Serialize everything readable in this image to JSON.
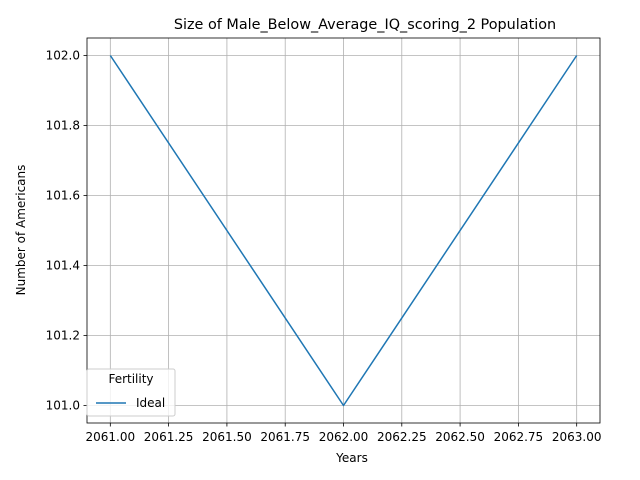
{
  "chart_data": {
    "type": "line",
    "title": "Size of Male_Below_Average_IQ_scoring_2 Population",
    "xlabel": "Years",
    "ylabel": "Number of Americans",
    "x": [
      2061,
      2062,
      2063
    ],
    "series": [
      {
        "name": "Ideal",
        "values": [
          102,
          101,
          102
        ],
        "color": "#1f77b4"
      }
    ],
    "xlim": [
      2060.9,
      2063.1
    ],
    "ylim": [
      100.95,
      102.05
    ],
    "xticks": [
      2061.0,
      2061.25,
      2061.5,
      2061.75,
      2062.0,
      2062.25,
      2062.5,
      2062.75,
      2063.0
    ],
    "xtick_labels": [
      "2061.00",
      "2061.25",
      "2061.50",
      "2061.75",
      "2062.00",
      "2062.25",
      "2062.50",
      "2062.75",
      "2063.00"
    ],
    "yticks": [
      101.0,
      101.2,
      101.4,
      101.6,
      101.8,
      102.0
    ],
    "ytick_labels": [
      "101.0",
      "101.2",
      "101.4",
      "101.6",
      "101.8",
      "102.0"
    ],
    "grid": true,
    "legend": {
      "title": "Fertility",
      "position": "lower-left"
    }
  }
}
